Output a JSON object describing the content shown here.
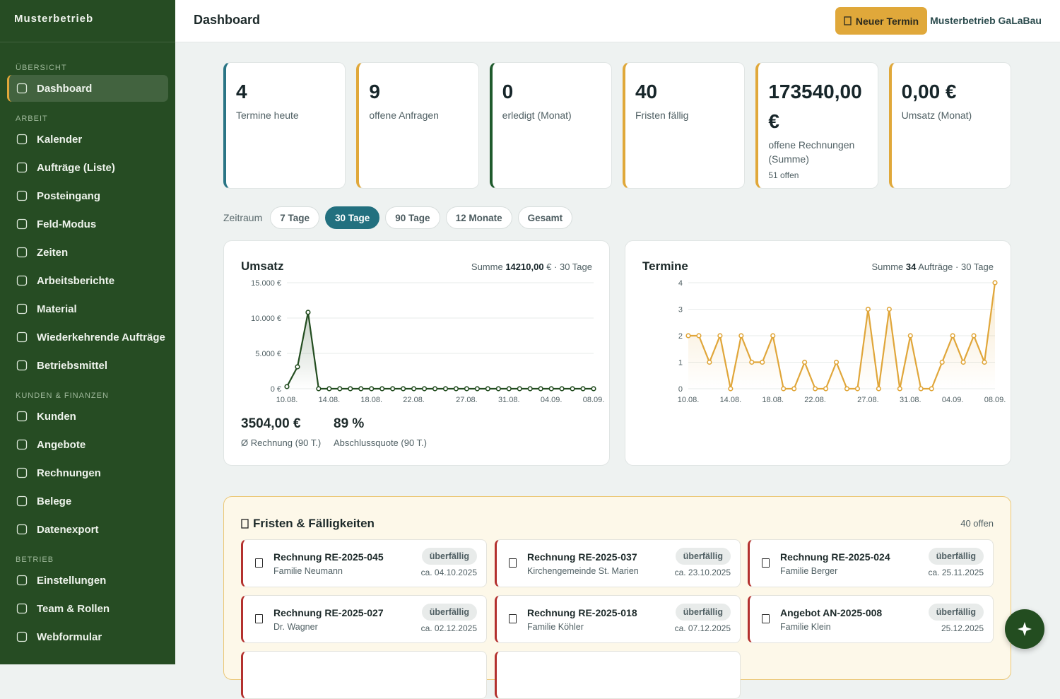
{
  "sidebar": {
    "brand": "Musterbetrieb",
    "active": [
      0,
      0
    ],
    "sections": [
      {
        "title": "ÜBERSICHT",
        "items": [
          "Dashboard"
        ]
      },
      {
        "title": "ARBEIT",
        "items": [
          "Kalender",
          "Aufträge (Liste)",
          "Posteingang",
          "Feld-Modus",
          "Zeiten",
          "Arbeitsberichte",
          "Material",
          "Wiederkehrende Aufträge",
          "Betriebsmittel"
        ]
      },
      {
        "title": "KUNDEN & FINANZEN",
        "items": [
          "Kunden",
          "Angebote",
          "Rechnungen",
          "Belege",
          "Datenexport"
        ]
      },
      {
        "title": "BETRIEB",
        "items": [
          "Einstellungen",
          "Team & Rollen",
          "Webformular"
        ]
      }
    ]
  },
  "header": {
    "title": "Dashboard",
    "button": "Neuer Termin",
    "company": "Musterbetrieb GaLaBau"
  },
  "kpis": [
    {
      "value": "4",
      "label": "Termine heute",
      "color": "#2a7585"
    },
    {
      "value": "9",
      "label": "offene Anfragen",
      "color": "#e0a83a"
    },
    {
      "value": "0",
      "label": "erledigt (Monat)",
      "color": "#1f5a2c"
    },
    {
      "value": "40",
      "label": "Fristen fällig",
      "color": "#e0a83a"
    },
    {
      "value": "173540,00 €",
      "label": "offene Rechnungen (Summe)",
      "note": "51 offen",
      "color": "#e0a83a"
    },
    {
      "value": "0,00 €",
      "label": "Umsatz (Monat)",
      "color": "#e0a83a"
    }
  ],
  "filters": {
    "label": "Zeitraum",
    "options": [
      "7 Tage",
      "30 Tage",
      "90 Tage",
      "12 Monate",
      "Gesamt"
    ],
    "active": 1
  },
  "chart_data": [
    {
      "type": "line",
      "title": "Umsatz",
      "subtitle": [
        "Summe",
        "14210,00",
        "€ · 30 Tage"
      ],
      "color": "#234d20",
      "area": true,
      "grid": true,
      "categories": [
        "10.08.",
        null,
        null,
        null,
        "14.08.",
        null,
        null,
        null,
        "18.08.",
        null,
        null,
        null,
        "22.08.",
        null,
        null,
        null,
        null,
        "27.08.",
        null,
        null,
        null,
        "31.08.",
        null,
        null,
        null,
        "04.09.",
        null,
        null,
        null,
        "08.09."
      ],
      "values": [
        300,
        3100,
        10810,
        0,
        0,
        0,
        0,
        0,
        0,
        0,
        0,
        0,
        0,
        0,
        0,
        0,
        0,
        0,
        0,
        0,
        0,
        0,
        0,
        0,
        0,
        0,
        0,
        0,
        0,
        0
      ],
      "ylim": [
        0,
        15000
      ],
      "yticks": [
        {
          "value": 0,
          "label": "0 €"
        },
        {
          "value": 5000,
          "label": "5.000 €"
        },
        {
          "value": 10000,
          "label": "10.000 €"
        },
        {
          "value": 15000,
          "label": "15.000 €"
        }
      ],
      "stats": [
        {
          "value": "3504,00 €",
          "label": "Ø Rechnung (90 T.)"
        },
        {
          "value": "89 %",
          "label": "Abschlussquote (90 T.)"
        }
      ]
    },
    {
      "type": "line",
      "title": "Termine",
      "subtitle": [
        "Summe",
        "34",
        "Aufträge · 30 Tage"
      ],
      "color": "#e0a63a",
      "area": true,
      "grid": true,
      "categories": [
        "10.08.",
        null,
        null,
        null,
        "14.08.",
        null,
        null,
        null,
        "18.08.",
        null,
        null,
        null,
        "22.08.",
        null,
        null,
        null,
        null,
        "27.08.",
        null,
        null,
        null,
        "31.08.",
        null,
        null,
        null,
        "04.09.",
        null,
        null,
        null,
        "08.09."
      ],
      "values": [
        2,
        2,
        1,
        2,
        0,
        2,
        1,
        1,
        2,
        0,
        0,
        1,
        0,
        0,
        1,
        0,
        0,
        3,
        0,
        3,
        0,
        2,
        0,
        0,
        1,
        2,
        1,
        2,
        1,
        4
      ],
      "ylim": [
        0,
        4
      ],
      "yticks": [
        0,
        1,
        2,
        3,
        4
      ]
    }
  ],
  "deadlines": {
    "title": "Fristen & Fälligkeiten",
    "count": "40 offen",
    "items": [
      {
        "title": "Rechnung RE-2025-045",
        "client": "Familie Neumann",
        "status": "überfällig",
        "date": "ca. 04.10.2025"
      },
      {
        "title": "Rechnung RE-2025-037",
        "client": "Kirchengemeinde St. Marien",
        "status": "überfällig",
        "date": "ca. 23.10.2025"
      },
      {
        "title": "Rechnung RE-2025-024",
        "client": "Familie Berger",
        "status": "überfällig",
        "date": "ca. 25.11.2025"
      },
      {
        "title": "Rechnung RE-2025-027",
        "client": "Dr. Wagner",
        "status": "überfällig",
        "date": "ca. 02.12.2025"
      },
      {
        "title": "Rechnung RE-2025-018",
        "client": "Familie Köhler",
        "status": "überfällig",
        "date": "ca. 07.12.2025"
      },
      {
        "title": "Angebot AN-2025-008",
        "client": "Familie Klein",
        "status": "überfällig",
        "date": "25.12.2025"
      }
    ]
  }
}
